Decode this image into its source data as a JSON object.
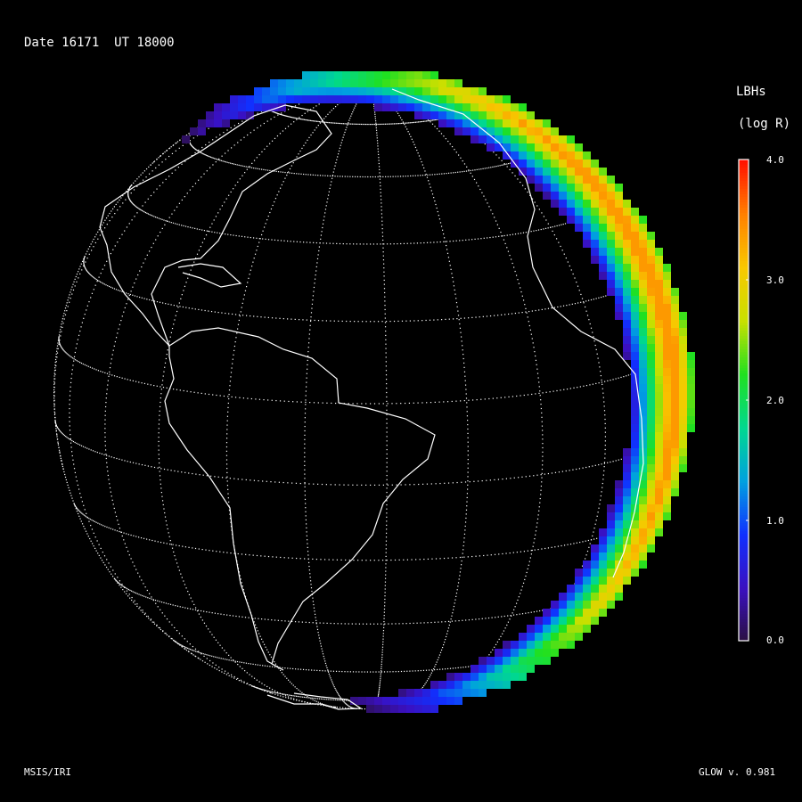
{
  "header": {
    "date_label": "Date 16171  UT 18000"
  },
  "footer": {
    "left": "MSIS/IRI",
    "right": "GLOW v. 0.981"
  },
  "colorbar": {
    "title": "LBHs",
    "units": "(log R)",
    "range": [
      0.0,
      4.0
    ],
    "ticks": [
      "4.0",
      "3.0",
      "2.0",
      "1.0",
      "0.0"
    ],
    "colormap": [
      "#2a1040",
      "#3a10c0",
      "#1030ff",
      "#00a0e0",
      "#00d890",
      "#20e020",
      "#c8e000",
      "#f8c800",
      "#ff8000",
      "#ff1000"
    ]
  },
  "map": {
    "projection": "orthographic",
    "graticule": "dotted",
    "coastline_color": "#ffffff",
    "emission_peak_log_R": 3.4
  }
}
